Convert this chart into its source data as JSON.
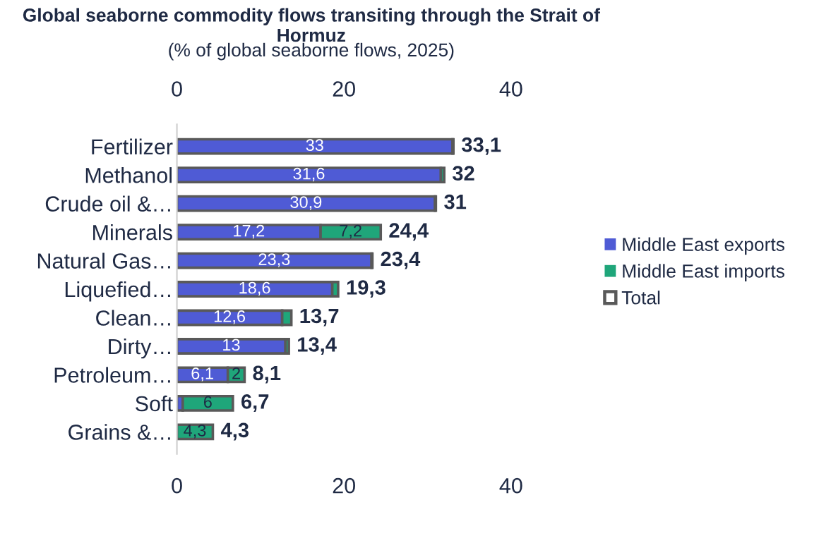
{
  "chart_data": {
    "type": "bar",
    "orientation": "horizontal",
    "stacked": true,
    "title": "Global seaborne commodity flows transiting through the Strait of Hormuz",
    "subtitle": "(% of global seaborne flows, 2025)",
    "categories": [
      "Fertilizer",
      "Methanol",
      "Crude oil &…",
      "Minerals",
      "Natural Gas…",
      "Liquefied…",
      "Clean…",
      "Dirty…",
      "Petroleum…",
      "Soft",
      "Grains &…"
    ],
    "series": [
      {
        "name": "Middle East exports",
        "color": "#4f5bd5",
        "values": [
          33,
          31.6,
          30.9,
          17.2,
          23.3,
          18.6,
          12.6,
          13,
          6.1,
          0.7,
          0
        ],
        "value_labels": [
          "33",
          "31,6",
          "30,9",
          "17,2",
          "23,3",
          "18,6",
          "12,6",
          "13",
          "6,1",
          null,
          null
        ]
      },
      {
        "name": "Middle East imports",
        "color": "#1fa67a",
        "values": [
          0.1,
          0.4,
          0.1,
          7.2,
          0.1,
          0.7,
          1.1,
          0.4,
          2,
          6,
          4.3
        ],
        "value_labels": [
          null,
          null,
          null,
          "7,2",
          null,
          null,
          null,
          null,
          "2",
          "6",
          "4,3"
        ]
      }
    ],
    "totals": [
      "33,1",
      "32",
      "31",
      "24,4",
      "23,4",
      "19,3",
      "13,7",
      "13,4",
      "8,1",
      "6,7",
      "4,3"
    ],
    "annotations": [
      "Total"
    ],
    "xlim": [
      0,
      40
    ],
    "xticks": [
      0,
      20,
      40
    ],
    "x2lim": [
      0,
      40
    ],
    "x2ticks": [
      0,
      20,
      40
    ],
    "grid": false,
    "legend": "right"
  }
}
